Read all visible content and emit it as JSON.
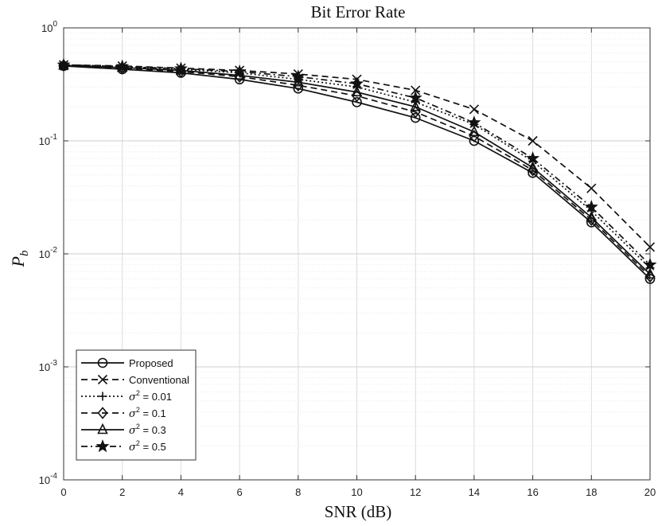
{
  "chart_data": {
    "type": "line",
    "title": "Bit Error Rate",
    "xlabel": "SNR (dB)",
    "ylabel": "P",
    "ylabel_sub": "b",
    "xlim": [
      0,
      20
    ],
    "ylim": [
      0.0001,
      1
    ],
    "yscale": "log",
    "grid": true,
    "legend_position": "bottom-left",
    "x_ticks": [
      0,
      2,
      4,
      6,
      8,
      10,
      12,
      14,
      16,
      18,
      20
    ],
    "y_ticks": [
      {
        "value": 1,
        "base": "10",
        "exp": "0"
      },
      {
        "value": 0.1,
        "base": "10",
        "exp": "-1"
      },
      {
        "value": 0.01,
        "base": "10",
        "exp": "-2"
      },
      {
        "value": 0.001,
        "base": "10",
        "exp": "-3"
      },
      {
        "value": 0.0001,
        "base": "10",
        "exp": "-4"
      }
    ],
    "x": [
      0,
      2,
      4,
      6,
      8,
      10,
      12,
      14,
      16,
      18,
      20
    ],
    "series": [
      {
        "name": "Proposed",
        "name_pre": "",
        "name_sup": "",
        "name_post": "",
        "marker": "circle",
        "dash": "solid",
        "values": [
          0.46,
          0.43,
          0.4,
          0.35,
          0.29,
          0.22,
          0.16,
          0.1,
          0.052,
          0.019,
          0.006
        ]
      },
      {
        "name": "Conventional",
        "name_pre": "",
        "name_sup": "",
        "name_post": "",
        "marker": "x",
        "dash": "dashed",
        "values": [
          0.47,
          0.46,
          0.44,
          0.42,
          0.39,
          0.35,
          0.28,
          0.19,
          0.1,
          0.038,
          0.0115
        ]
      },
      {
        "name": "",
        "name_pre": "σ",
        "name_sup": "2",
        "name_post": " = 0.01",
        "marker": "plus",
        "dash": "dotted",
        "values": [
          0.47,
          0.455,
          0.43,
          0.4,
          0.35,
          0.3,
          0.22,
          0.14,
          0.066,
          0.024,
          0.0075
        ]
      },
      {
        "name": "",
        "name_pre": "σ",
        "name_sup": "2",
        "name_post": " = 0.1",
        "marker": "diamond",
        "dash": "dashed",
        "values": [
          0.465,
          0.44,
          0.41,
          0.37,
          0.31,
          0.25,
          0.18,
          0.11,
          0.055,
          0.02,
          0.0063
        ]
      },
      {
        "name": "",
        "name_pre": "σ",
        "name_sup": "2",
        "name_post": " = 0.3",
        "marker": "triangle",
        "dash": "solid",
        "values": [
          0.465,
          0.445,
          0.42,
          0.38,
          0.33,
          0.27,
          0.2,
          0.12,
          0.058,
          0.021,
          0.0066
        ]
      },
      {
        "name": "",
        "name_pre": "σ",
        "name_sup": "2",
        "name_post": " = 0.5",
        "marker": "star",
        "dash": "dashdot",
        "values": [
          0.47,
          0.455,
          0.435,
          0.41,
          0.37,
          0.32,
          0.24,
          0.145,
          0.07,
          0.026,
          0.008
        ]
      }
    ]
  }
}
